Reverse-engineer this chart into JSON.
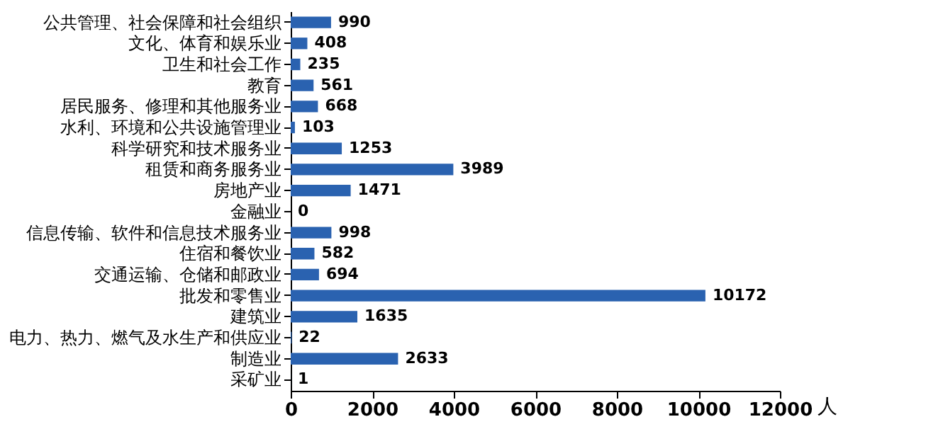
{
  "chart_data": {
    "type": "bar",
    "orientation": "horizontal",
    "xlabel": "人",
    "categories": [
      "公共管理、社会保障和社会组织",
      "文化、体育和娱乐业",
      "卫生和社会工作",
      "教育",
      "居民服务、修理和其他服务业",
      "水利、环境和公共设施管理业",
      "科学研究和技术服务业",
      "租赁和商务服务业",
      "房地产业",
      "金融业",
      "信息传输、软件和信息技术服务业",
      "住宿和餐饮业",
      "交通运输、仓储和邮政业",
      "批发和零售业",
      "建筑业",
      "电力、热力、燃气及水生产和供应业",
      "制造业",
      "采矿业"
    ],
    "values": [
      990,
      408,
      235,
      561,
      668,
      103,
      1253,
      3989,
      1471,
      0,
      998,
      582,
      694,
      10172,
      1635,
      22,
      2633,
      1
    ],
    "color": "#2a62b0",
    "data_labels": true,
    "xlim": [
      0,
      12000
    ],
    "xticks": [
      0,
      2000,
      4000,
      6000,
      8000,
      10000,
      12000
    ]
  }
}
